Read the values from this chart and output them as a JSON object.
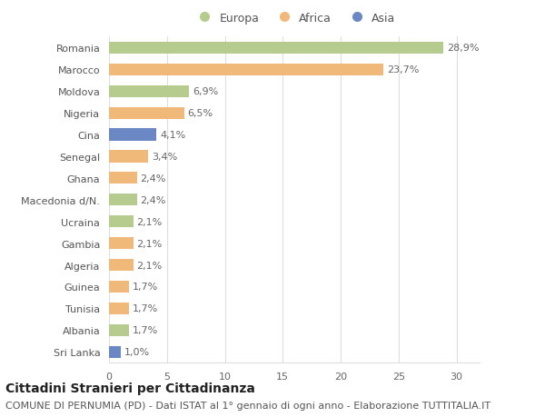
{
  "categories": [
    "Romania",
    "Marocco",
    "Moldova",
    "Nigeria",
    "Cina",
    "Senegal",
    "Ghana",
    "Macedonia d/N.",
    "Ucraina",
    "Gambia",
    "Algeria",
    "Guinea",
    "Tunisia",
    "Albania",
    "Sri Lanka"
  ],
  "values": [
    28.9,
    23.7,
    6.9,
    6.5,
    4.1,
    3.4,
    2.4,
    2.4,
    2.1,
    2.1,
    2.1,
    1.7,
    1.7,
    1.7,
    1.0
  ],
  "labels": [
    "28,9%",
    "23,7%",
    "6,9%",
    "6,5%",
    "4,1%",
    "3,4%",
    "2,4%",
    "2,4%",
    "2,1%",
    "2,1%",
    "2,1%",
    "1,7%",
    "1,7%",
    "1,7%",
    "1,0%"
  ],
  "continents": [
    "Europa",
    "Africa",
    "Europa",
    "Africa",
    "Asia",
    "Africa",
    "Africa",
    "Europa",
    "Europa",
    "Africa",
    "Africa",
    "Africa",
    "Africa",
    "Europa",
    "Asia"
  ],
  "colors": {
    "Europa": "#b5cc8e",
    "Africa": "#f0b97a",
    "Asia": "#6b87c4"
  },
  "xlim": [
    0,
    32
  ],
  "xticks": [
    0,
    5,
    10,
    15,
    20,
    25,
    30
  ],
  "title": "Cittadini Stranieri per Cittadinanza",
  "subtitle": "COMUNE DI PERNUMIA (PD) - Dati ISTAT al 1° gennaio di ogni anno - Elaborazione TUTTITALIA.IT",
  "background_color": "#ffffff",
  "grid_color": "#dddddd",
  "bar_height": 0.55,
  "title_fontsize": 10,
  "subtitle_fontsize": 8,
  "label_fontsize": 8,
  "tick_fontsize": 8,
  "legend_fontsize": 9
}
